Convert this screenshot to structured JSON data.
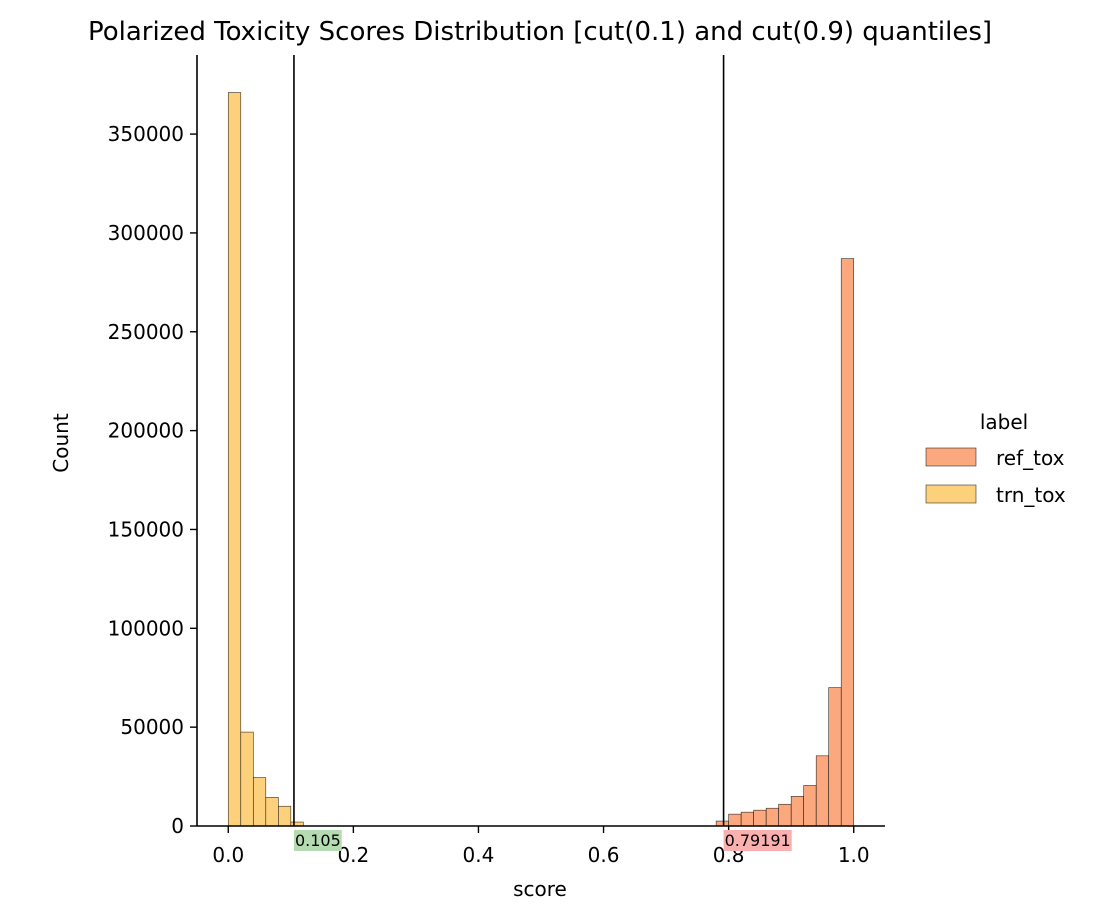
{
  "chart_data": {
    "type": "histogram",
    "title": "Polarized Toxicity Scores Distribution [cut(0.1) and cut(0.9) quantiles]",
    "xlabel": "score",
    "ylabel": "Count",
    "xlim": [
      -0.05,
      1.05
    ],
    "ylim": [
      0,
      390000
    ],
    "xticks": [
      0.0,
      0.2,
      0.4,
      0.6,
      0.8,
      1.0
    ],
    "xtick_labels": [
      "0.0",
      "0.2",
      "0.4",
      "0.6",
      "0.8",
      "1.0"
    ],
    "yticks": [
      0,
      50000,
      100000,
      150000,
      200000,
      250000,
      300000,
      350000
    ],
    "ytick_labels": [
      "0",
      "50000",
      "100000",
      "150000",
      "200000",
      "250000",
      "300000",
      "350000"
    ],
    "legend": {
      "title": "label",
      "placement": "right",
      "entries": [
        "ref_tox",
        "trn_tox"
      ]
    },
    "series": [
      {
        "name": "ref_tox",
        "color": "#fca87e",
        "bin_width": 0.02,
        "bins": [
          {
            "x0": 0.78,
            "x1": 0.8,
            "count": 2500
          },
          {
            "x0": 0.8,
            "x1": 0.82,
            "count": 6000
          },
          {
            "x0": 0.82,
            "x1": 0.84,
            "count": 7000
          },
          {
            "x0": 0.84,
            "x1": 0.86,
            "count": 8000
          },
          {
            "x0": 0.86,
            "x1": 0.88,
            "count": 9000
          },
          {
            "x0": 0.88,
            "x1": 0.9,
            "count": 11000
          },
          {
            "x0": 0.9,
            "x1": 0.92,
            "count": 15000
          },
          {
            "x0": 0.92,
            "x1": 0.94,
            "count": 20500
          },
          {
            "x0": 0.94,
            "x1": 0.96,
            "count": 35500
          },
          {
            "x0": 0.96,
            "x1": 0.98,
            "count": 70000
          },
          {
            "x0": 0.98,
            "x1": 1.0,
            "count": 287000
          }
        ]
      },
      {
        "name": "trn_tox",
        "color": "#fdd07c",
        "bin_width": 0.02,
        "bins": [
          {
            "x0": 0.0,
            "x1": 0.02,
            "count": 371000
          },
          {
            "x0": 0.02,
            "x1": 0.04,
            "count": 47500
          },
          {
            "x0": 0.04,
            "x1": 0.06,
            "count": 24500
          },
          {
            "x0": 0.06,
            "x1": 0.08,
            "count": 14500
          },
          {
            "x0": 0.08,
            "x1": 0.1,
            "count": 10000
          },
          {
            "x0": 0.1,
            "x1": 0.12,
            "count": 2000
          }
        ]
      }
    ],
    "cut_lines": [
      {
        "x": 0.105,
        "label": "0.105",
        "label_bg": "#b5dbb0"
      },
      {
        "x": 0.79191,
        "label": "0.79191",
        "label_bg": "#fbb0b0"
      }
    ]
  }
}
